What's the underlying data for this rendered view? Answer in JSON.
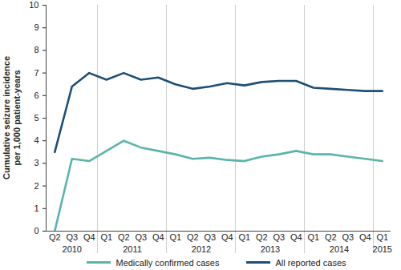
{
  "chart_data": {
    "type": "line",
    "y_label": "Cumulative seizure incidence per 1,000 patient-years",
    "categories": [
      "Q2",
      "Q3",
      "Q4",
      "Q1",
      "Q2",
      "Q3",
      "Q4",
      "Q1",
      "Q2",
      "Q3",
      "Q4",
      "Q1",
      "Q2",
      "Q3",
      "Q4",
      "Q1",
      "Q2",
      "Q3",
      "Q4",
      "Q1"
    ],
    "category_groups": [
      {
        "label": "2010",
        "count": 3
      },
      {
        "label": "2011",
        "count": 4
      },
      {
        "label": "2012",
        "count": 4
      },
      {
        "label": "2013",
        "count": 4
      },
      {
        "label": "2014",
        "count": 4
      },
      {
        "label": "2015",
        "count": 1
      }
    ],
    "series": [
      {
        "name": "Medically confirmed cases",
        "color": "#5ab4ac",
        "values": [
          0,
          3.2,
          3.1,
          3.55,
          4.0,
          3.7,
          3.55,
          3.4,
          3.2,
          3.25,
          3.15,
          3.1,
          3.3,
          3.4,
          3.55,
          3.4,
          3.4,
          3.3,
          3.2,
          3.1
        ]
      },
      {
        "name": "All reported cases",
        "color": "#1d4f76",
        "values": [
          3.5,
          6.4,
          7.0,
          6.7,
          7.0,
          6.7,
          6.8,
          6.5,
          6.3,
          6.4,
          6.55,
          6.45,
          6.6,
          6.65,
          6.65,
          6.35,
          6.3,
          6.25,
          6.2,
          6.2
        ]
      }
    ],
    "ylim": [
      0,
      10
    ],
    "yticks": [
      0,
      1,
      2,
      3,
      4,
      5,
      6,
      7,
      8,
      9,
      10
    ],
    "legend": "bottom"
  }
}
